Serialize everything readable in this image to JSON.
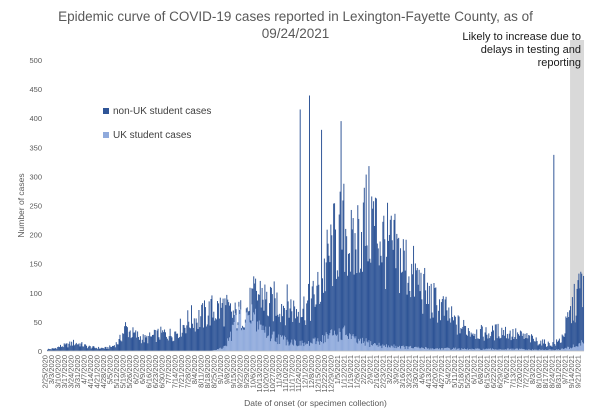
{
  "chart_data": {
    "type": "bar",
    "stacked": true,
    "title": "Epidemic curve of COVID-19 cases reported in Lexington-Fayette County, as of",
    "title_line2": "09/24/2021",
    "ylabel": "Number of cases",
    "xlabel": "Date of onset (or specimen collection)",
    "ylim": [
      0,
      500
    ],
    "yticks": [
      0,
      50,
      100,
      150,
      200,
      250,
      300,
      350,
      400,
      450,
      500
    ],
    "x_start": "2/25/2020",
    "x_end": "9/24/2021",
    "x_tick_interval_days": 7,
    "grid": false,
    "legend_position": "upper-left",
    "annotation": {
      "text_lines": [
        "Likely to increase due to",
        "delays in testing and",
        "reporting"
      ],
      "shaded_from": "9/10/2021",
      "shaded_to": "9/24/2021",
      "shade_color": "#d9d9d9"
    },
    "series": [
      {
        "name": "non-UK student cases",
        "color": "#2f5597",
        "weekly_values": [
          3,
          4,
          8,
          10,
          14,
          12,
          8,
          6,
          5,
          5,
          8,
          16,
          40,
          30,
          25,
          20,
          24,
          28,
          30,
          28,
          35,
          45,
          55,
          55,
          60,
          68,
          70,
          75,
          65,
          60,
          65,
          75,
          95,
          100,
          75,
          85,
          80,
          80,
          70,
          72,
          78,
          90,
          110,
          150,
          180,
          200,
          210,
          160,
          210,
          220,
          225,
          200,
          180,
          170,
          160,
          150,
          130,
          120,
          100,
          85,
          80,
          70,
          55,
          45,
          40,
          35,
          33,
          30,
          30,
          33,
          35,
          30,
          28,
          25,
          22,
          18,
          15,
          12,
          12,
          20,
          50,
          80,
          110,
          130,
          150,
          170,
          180,
          200,
          210,
          180,
          160,
          150,
          160,
          120,
          90
        ]
      },
      {
        "name": "UK student cases",
        "color": "#8faadc",
        "weekly_values": [
          0,
          0,
          0,
          0,
          0,
          0,
          0,
          0,
          0,
          0,
          0,
          0,
          0,
          0,
          0,
          0,
          0,
          0,
          0,
          0,
          0,
          0,
          0,
          0,
          0,
          0,
          2,
          5,
          20,
          55,
          80,
          70,
          55,
          40,
          30,
          25,
          20,
          18,
          15,
          12,
          12,
          15,
          20,
          25,
          28,
          30,
          30,
          20,
          15,
          15,
          12,
          10,
          8,
          8,
          8,
          6,
          6,
          5,
          5,
          4,
          4,
          4,
          4,
          4,
          3,
          3,
          3,
          3,
          3,
          3,
          3,
          3,
          3,
          3,
          2,
          2,
          2,
          2,
          2,
          3,
          5,
          8,
          12,
          15,
          20,
          20,
          20,
          20,
          18,
          15,
          15,
          12,
          10,
          8,
          6
        ]
      }
    ],
    "peaks": [
      {
        "date": "12/3/2020",
        "value": 439
      },
      {
        "date": "11/23/2020",
        "value": 415
      },
      {
        "date": "1/6/2021",
        "value": 395
      },
      {
        "date": "12/16/2020",
        "value": 380
      },
      {
        "date": "8/23/2021",
        "value": 337
      }
    ]
  }
}
